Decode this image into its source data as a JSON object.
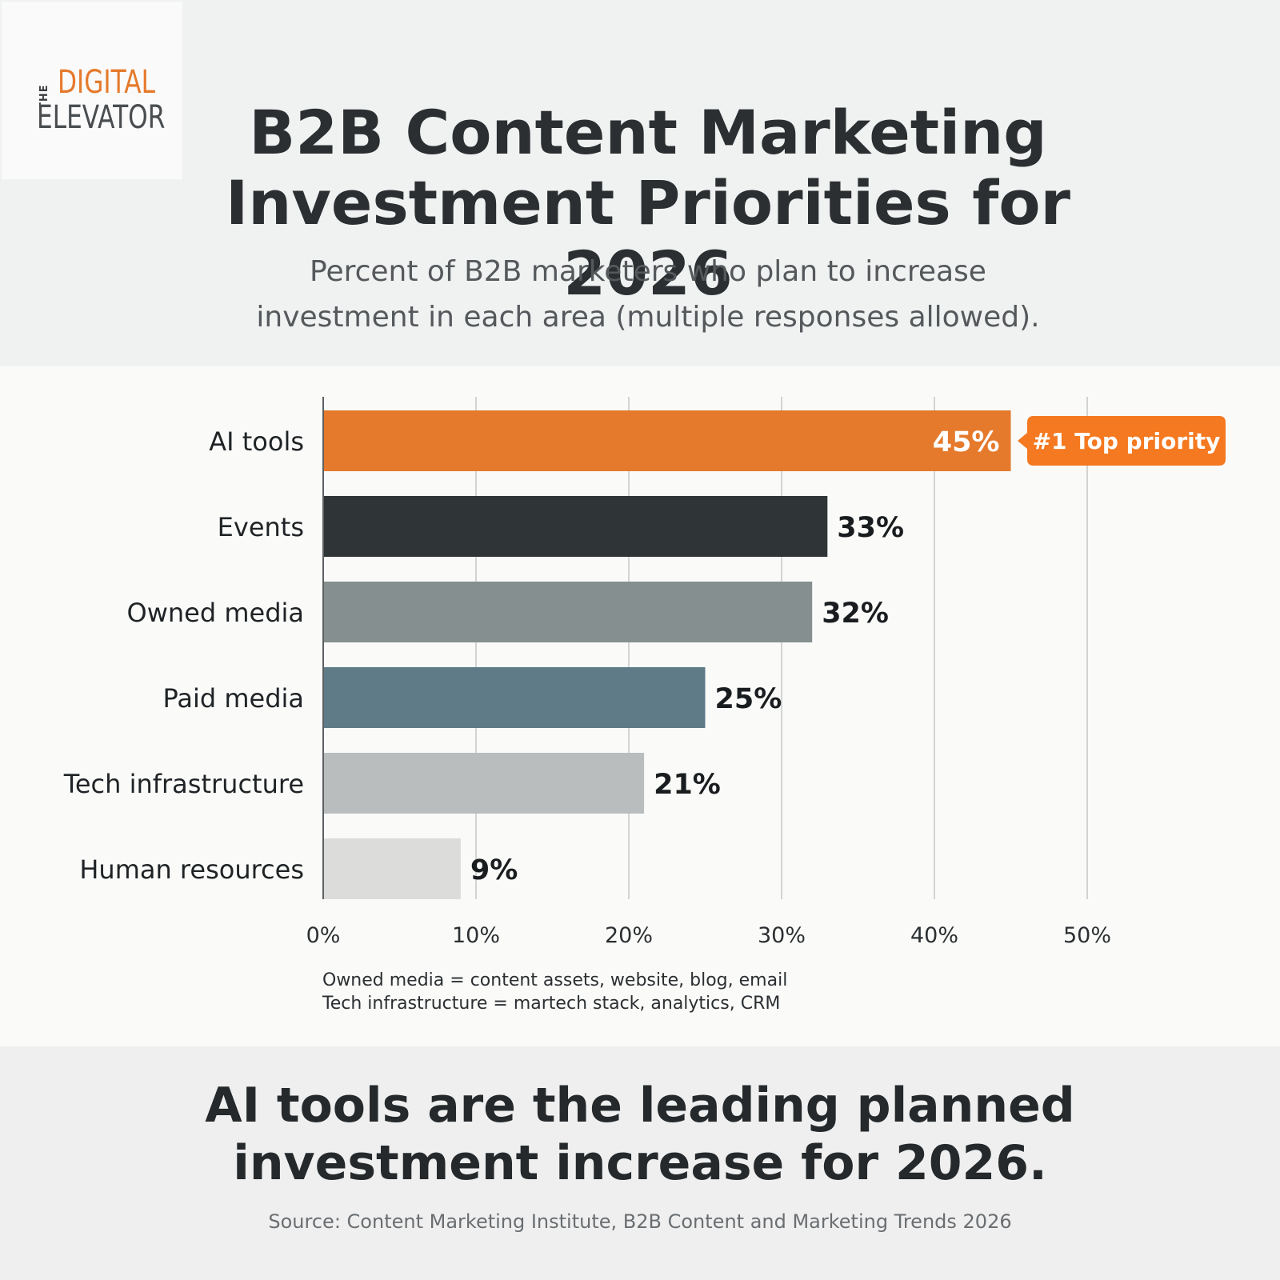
{
  "logo": {
    "the": "THE",
    "digital": "DIGITAL",
    "elevator": "ELEVATOR"
  },
  "header": {
    "title_line1": "B2B Content Marketing",
    "title_line2": "Investment Priorities for 2026",
    "subtitle_line1": "Percent of B2B marketers who plan to increase",
    "subtitle_line2": "investment in each area (multiple responses allowed)."
  },
  "colors": {
    "accent": "#e57a2c",
    "badge": "#f47920"
  },
  "chart_data": {
    "type": "bar",
    "orientation": "horizontal",
    "categories": [
      "AI tools",
      "Events",
      "Owned media",
      "Paid media",
      "Tech infrastructure",
      "Human resources"
    ],
    "values": [
      45,
      33,
      32,
      25,
      21,
      9
    ],
    "value_labels": [
      "45%",
      "33%",
      "32%",
      "25%",
      "21%",
      "9%"
    ],
    "bar_colors": [
      "#e57a2c",
      "#2f3436",
      "#858f8f",
      "#5f7b88",
      "#b9bdbd",
      "#dcdddb"
    ],
    "xlim": [
      0,
      50
    ],
    "x_ticks": [
      0,
      10,
      20,
      30,
      40,
      50
    ],
    "x_tick_labels": [
      "0%",
      "10%",
      "20%",
      "30%",
      "40%",
      "50%"
    ],
    "grid": true,
    "annotation": {
      "category": "AI tools",
      "text": "#1 Top priority"
    }
  },
  "footnotes": {
    "line1": "Owned media = content assets, website, blog, email",
    "line2": "Tech infrastructure = martech stack, analytics, CRM"
  },
  "takeaway": {
    "line1": "AI tools are the leading planned",
    "line2": "investment increase for 2026."
  },
  "source": "Source: Content Marketing Institute, B2B Content and Marketing Trends 2026"
}
